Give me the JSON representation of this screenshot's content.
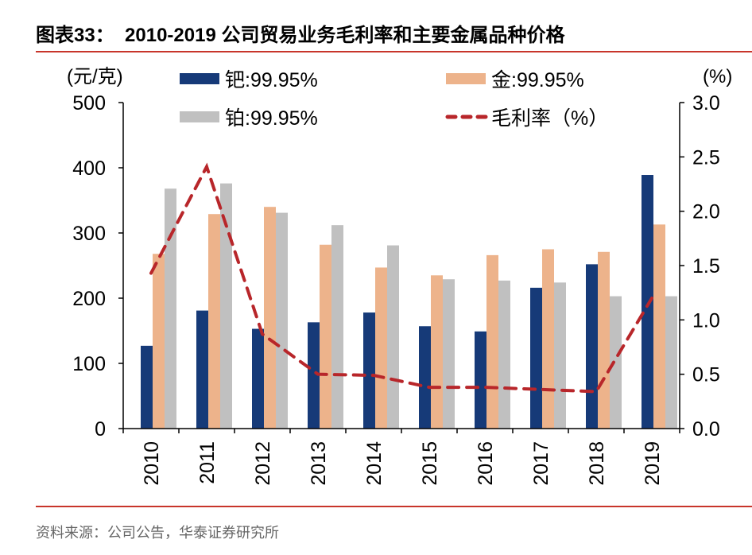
{
  "header": {
    "title": "图表33：  2010-2019 公司贸易业务毛利率和主要金属品种价格"
  },
  "footer": {
    "source": "资料来源：公司公告，华泰证券研究所"
  },
  "chart_data": {
    "type": "bar",
    "title": "",
    "ylabel_left": "(元/克)",
    "ylabel_right": "(%)",
    "ylim_left": [
      0,
      500
    ],
    "ylim_right": [
      0,
      3.0
    ],
    "yticks_left": [
      "0",
      "100",
      "200",
      "300",
      "400",
      "500"
    ],
    "yticks_right": [
      "0.0",
      "0.5",
      "1.0",
      "1.5",
      "2.0",
      "2.5",
      "3.0"
    ],
    "categories": [
      "2010",
      "2011",
      "2012",
      "2013",
      "2014",
      "2015",
      "2016",
      "2017",
      "2018",
      "2019"
    ],
    "grid": false,
    "legend_placement": "top",
    "series": [
      {
        "name": "钯:99.95%",
        "type": "bar",
        "axis": "left",
        "color": "#163a78",
        "values": [
          127,
          181,
          153,
          163,
          178,
          157,
          149,
          216,
          252,
          389
        ]
      },
      {
        "name": "金:99.95%",
        "type": "bar",
        "axis": "left",
        "color": "#edb38b",
        "values": [
          268,
          329,
          340,
          282,
          247,
          235,
          266,
          275,
          271,
          313
        ]
      },
      {
        "name": "铂:99.95%",
        "type": "bar",
        "axis": "left",
        "color": "#c0c0c0",
        "values": [
          368,
          376,
          331,
          312,
          281,
          229,
          227,
          224,
          203,
          203
        ]
      },
      {
        "name": "毛利率（%）",
        "type": "line",
        "style": "dashed",
        "axis": "right",
        "color": "#b8262a",
        "values": [
          1.43,
          2.41,
          0.87,
          0.5,
          0.49,
          0.38,
          0.38,
          0.36,
          0.34,
          1.2
        ]
      }
    ]
  }
}
